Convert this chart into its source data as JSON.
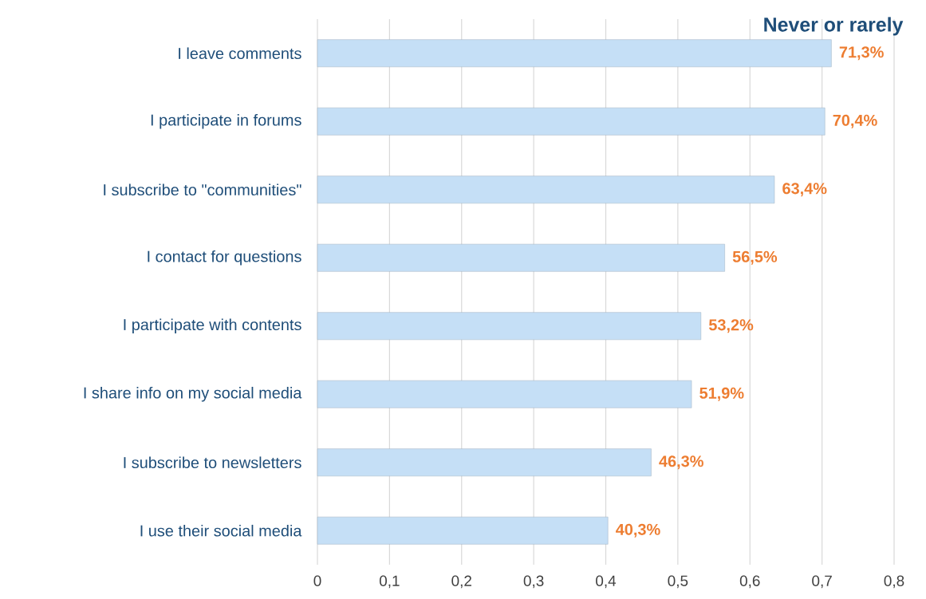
{
  "chart_data": {
    "type": "bar",
    "orientation": "horizontal",
    "title": "Never or rarely",
    "categories": [
      "I leave comments",
      "I participate in forums",
      "I subscribe to \"communities\"",
      "I contact for questions",
      "I participate with contents",
      "I share info on my social media",
      "I subscribe to newsletters",
      "I use their social media"
    ],
    "values": [
      0.713,
      0.704,
      0.634,
      0.565,
      0.532,
      0.519,
      0.463,
      0.403
    ],
    "value_labels": [
      "71,3%",
      "70,4%",
      "63,4%",
      "56,5%",
      "53,2%",
      "51,9%",
      "46,3%",
      "40,3%"
    ],
    "color": "#c5dff6",
    "xlim": [
      0,
      0.8
    ],
    "xticks": [
      0,
      {
        "value": 0.1,
        "label": "0,1"
      },
      {
        "value": 0.2,
        "label": "0,2"
      },
      {
        "value": 0.3,
        "label": "0,3"
      },
      {
        "value": 0.4,
        "label": "0,4"
      },
      {
        "value": 0.5,
        "label": "0,5"
      },
      {
        "value": 0.6,
        "label": "0,6"
      },
      {
        "value": 0.7,
        "label": "0,7"
      },
      {
        "value": 0.8,
        "label": "0,8"
      }
    ],
    "grid": "x"
  }
}
